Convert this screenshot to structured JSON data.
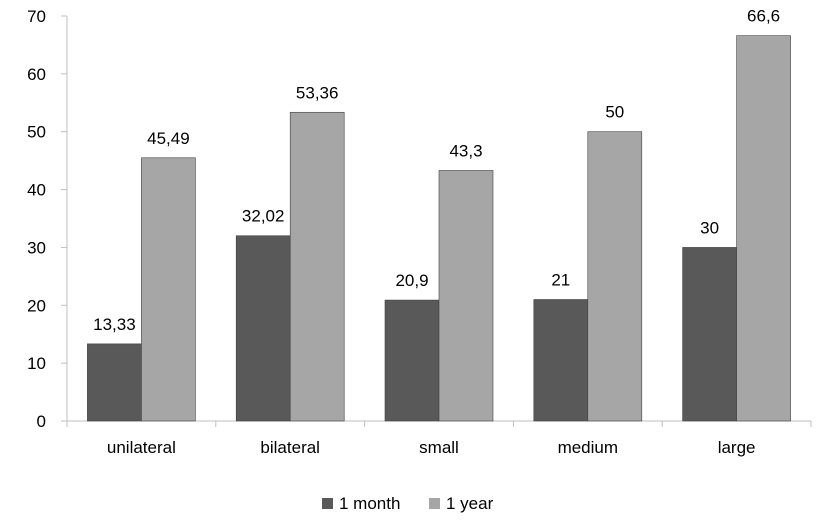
{
  "chart_data": {
    "type": "bar",
    "categories": [
      "unilateral",
      "bilateral",
      "small",
      "medium",
      "large"
    ],
    "series": [
      {
        "name": "1 month",
        "color": "#595959",
        "values": [
          13.33,
          32.02,
          20.9,
          21,
          30
        ],
        "labels": [
          "13,33",
          "32,02",
          "20,9",
          "21",
          "30"
        ]
      },
      {
        "name": "1 year",
        "color": "#a6a6a6",
        "values": [
          45.49,
          53.36,
          43.3,
          50,
          66.6
        ],
        "labels": [
          "45,49",
          "53,36",
          "43,3",
          "50",
          "66,6"
        ]
      }
    ],
    "ylim": [
      0,
      70
    ],
    "yticks": [
      "0",
      "10",
      "20",
      "30",
      "40",
      "50",
      "60",
      "70"
    ],
    "grid": false,
    "legend": "bottom-center"
  }
}
